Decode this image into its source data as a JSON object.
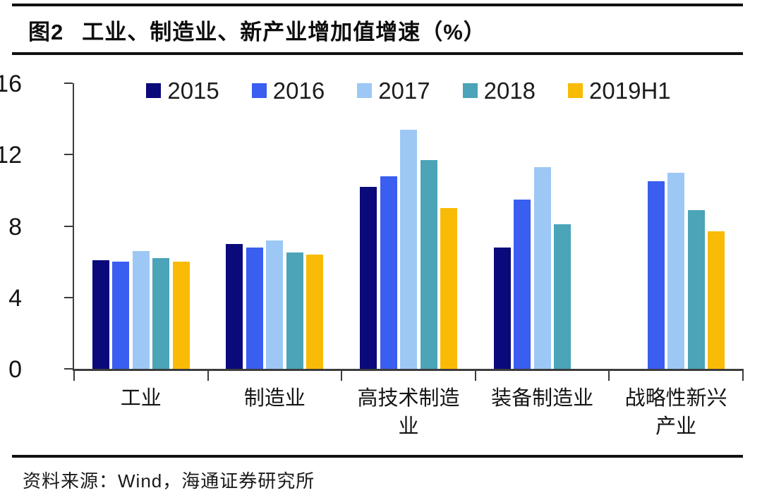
{
  "header": {
    "fig_label": "图2",
    "title": "工业、制造业、新产业增加值增速（%）"
  },
  "footer": {
    "source": "资料来源：Wind，海通证券研究所"
  },
  "colors": {
    "rule": "#111111",
    "axis": "#3c3c3c",
    "text": "#1a1a1a"
  },
  "chart_data": {
    "type": "bar",
    "title": "工业、制造业、新产业增加值增速（%）",
    "xlabel": "",
    "ylabel": "",
    "ylim": [
      0,
      16
    ],
    "yticks": [
      0,
      4,
      8,
      12,
      16
    ],
    "grid": false,
    "legend_position": "top",
    "categories": [
      "工业",
      "制造业",
      "高技术制造业",
      "装备制造业",
      "战略性新兴产业"
    ],
    "series": [
      {
        "name": "2015",
        "color": "#0a0a7a",
        "values": [
          6.1,
          7.0,
          10.2,
          6.8,
          null
        ]
      },
      {
        "name": "2016",
        "color": "#3a5ef0",
        "values": [
          6.0,
          6.8,
          10.8,
          9.5,
          10.5
        ]
      },
      {
        "name": "2017",
        "color": "#9dc8f5",
        "values": [
          6.6,
          7.2,
          13.4,
          11.3,
          11.0
        ]
      },
      {
        "name": "2018",
        "color": "#4ba4b8",
        "values": [
          6.2,
          6.5,
          11.7,
          8.1,
          8.9
        ]
      },
      {
        "name": "2019H1",
        "color": "#f9bb06",
        "values": [
          6.0,
          6.4,
          9.0,
          null,
          7.7
        ]
      }
    ]
  }
}
